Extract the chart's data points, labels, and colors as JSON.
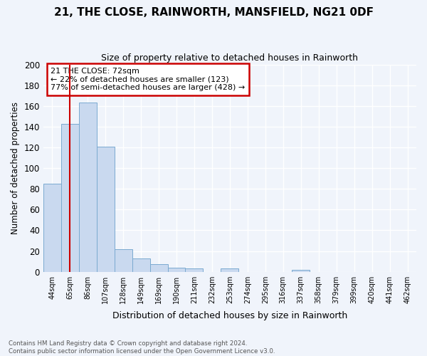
{
  "title": "21, THE CLOSE, RAINWORTH, MANSFIELD, NG21 0DF",
  "subtitle": "Size of property relative to detached houses in Rainworth",
  "xlabel": "Distribution of detached houses by size in Rainworth",
  "ylabel": "Number of detached properties",
  "bar_labels": [
    "44sqm",
    "65sqm",
    "86sqm",
    "107sqm",
    "128sqm",
    "149sqm",
    "169sqm",
    "190sqm",
    "211sqm",
    "232sqm",
    "253sqm",
    "274sqm",
    "295sqm",
    "316sqm",
    "337sqm",
    "358sqm",
    "379sqm",
    "399sqm",
    "420sqm",
    "441sqm",
    "462sqm"
  ],
  "bar_values": [
    85,
    143,
    163,
    121,
    22,
    13,
    7,
    4,
    3,
    0,
    3,
    0,
    0,
    0,
    2,
    0,
    0,
    0,
    0,
    0,
    0
  ],
  "bar_color": "#c9d9ef",
  "bar_edge_color": "#7aaad0",
  "vline_x": 1.0,
  "vline_color": "#cc0000",
  "annotation_text": "21 THE CLOSE: 72sqm\n← 22% of detached houses are smaller (123)\n77% of semi-detached houses are larger (428) →",
  "annotation_box_color": "#ffffff",
  "annotation_box_edge": "#cc0000",
  "ylim": [
    0,
    200
  ],
  "yticks": [
    0,
    20,
    40,
    60,
    80,
    100,
    120,
    140,
    160,
    180,
    200
  ],
  "footnote": "Contains HM Land Registry data © Crown copyright and database right 2024.\nContains public sector information licensed under the Open Government Licence v3.0.",
  "background_color": "#f0f4fb",
  "grid_color": "#ffffff",
  "title_fontsize": 11,
  "subtitle_fontsize": 9
}
